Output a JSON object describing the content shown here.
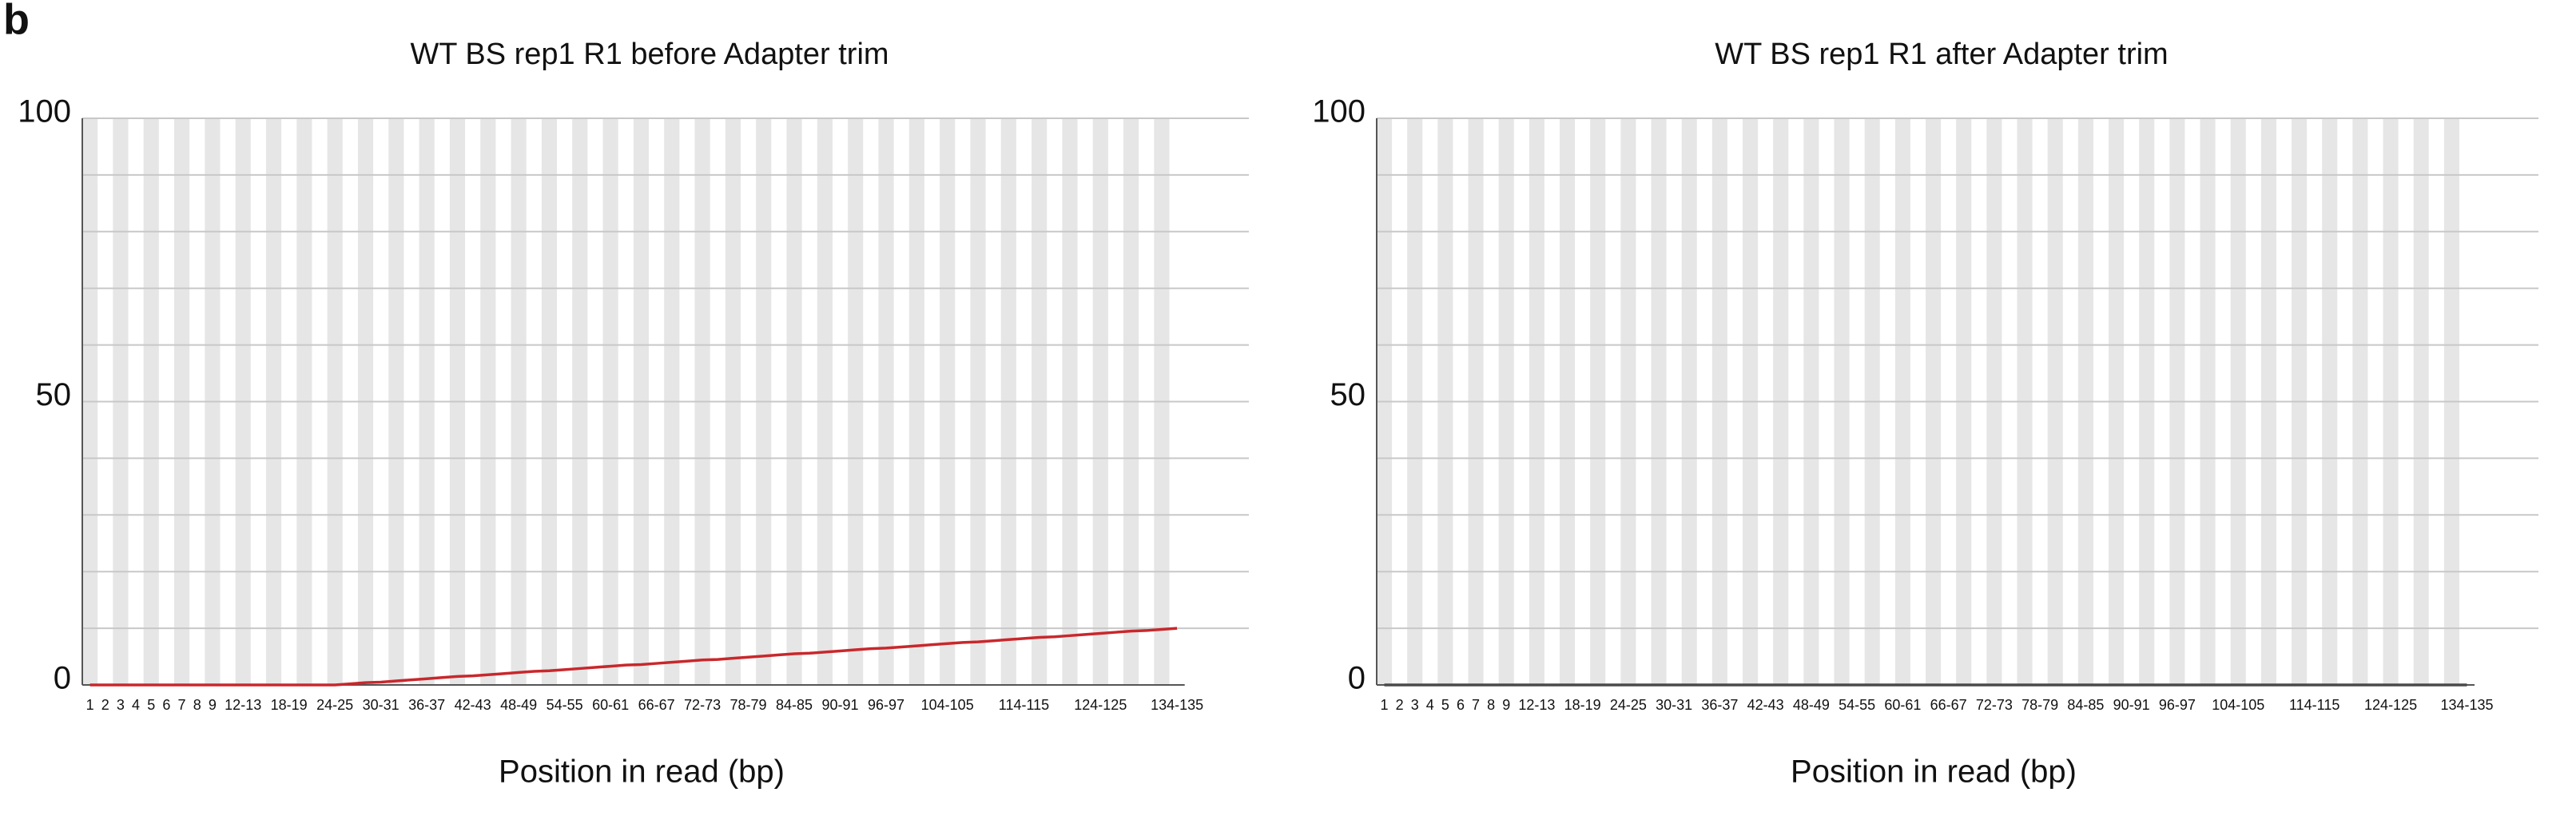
{
  "panel_label": "b",
  "chart_data": [
    {
      "type": "line",
      "title": "WT BS rep1 R1 before Adapter trim",
      "xlabel": "Position in read (bp)",
      "categories": [
        "1",
        "2",
        "3",
        "4",
        "5",
        "6",
        "7",
        "8",
        "9",
        null,
        "12-13",
        null,
        null,
        "18-19",
        null,
        null,
        "24-25",
        null,
        null,
        "30-31",
        null,
        null,
        "36-37",
        null,
        null,
        "42-43",
        null,
        null,
        "48-49",
        null,
        null,
        "54-55",
        null,
        null,
        "60-61",
        null,
        null,
        "66-67",
        null,
        null,
        "72-73",
        null,
        null,
        "78-79",
        null,
        null,
        "84-85",
        null,
        null,
        "90-91",
        null,
        null,
        "96-97",
        null,
        null,
        null,
        "104-105",
        null,
        null,
        null,
        null,
        "114-115",
        null,
        null,
        null,
        null,
        "124-125",
        null,
        null,
        null,
        null,
        "134-135"
      ],
      "color": "#c8282c",
      "values": [
        0,
        0,
        0,
        0,
        0,
        0,
        0,
        0,
        0,
        0,
        0,
        0,
        0,
        0,
        0,
        0,
        0,
        0.2,
        0.4,
        0.5,
        0.7,
        0.9,
        1.1,
        1.3,
        1.5,
        1.6,
        1.8,
        2.0,
        2.2,
        2.4,
        2.5,
        2.7,
        2.9,
        3.1,
        3.3,
        3.5,
        3.6,
        3.8,
        4.0,
        4.2,
        4.4,
        4.5,
        4.7,
        4.9,
        5.1,
        5.3,
        5.5,
        5.6,
        5.8,
        6.0,
        6.2,
        6.4,
        6.5,
        6.7,
        6.9,
        7.1,
        7.3,
        7.5,
        7.6,
        7.8,
        8.0,
        8.2,
        8.4,
        8.5,
        8.7,
        8.9,
        9.1,
        9.3,
        9.5,
        9.6,
        9.8,
        10.0
      ],
      "ylim": [
        0,
        100
      ],
      "yticks": [
        0,
        50,
        100
      ],
      "grid_lines": [
        10,
        20,
        30,
        40,
        50,
        60,
        70,
        80,
        90,
        100
      ]
    },
    {
      "type": "line",
      "title": "WT BS rep1 R1 after Adapter trim",
      "xlabel": "Position in read (bp)",
      "categories": [
        "1",
        "2",
        "3",
        "4",
        "5",
        "6",
        "7",
        "8",
        "9",
        null,
        "12-13",
        null,
        null,
        "18-19",
        null,
        null,
        "24-25",
        null,
        null,
        "30-31",
        null,
        null,
        "36-37",
        null,
        null,
        "42-43",
        null,
        null,
        "48-49",
        null,
        null,
        "54-55",
        null,
        null,
        "60-61",
        null,
        null,
        "66-67",
        null,
        null,
        "72-73",
        null,
        null,
        "78-79",
        null,
        null,
        "84-85",
        null,
        null,
        "90-91",
        null,
        null,
        "96-97",
        null,
        null,
        null,
        "104-105",
        null,
        null,
        null,
        null,
        "114-115",
        null,
        null,
        null,
        null,
        "124-125",
        null,
        null,
        null,
        null,
        "134-135"
      ],
      "color": "#4a4a4a",
      "values": [
        0,
        0,
        0,
        0,
        0,
        0,
        0,
        0,
        0,
        0,
        0,
        0,
        0,
        0,
        0,
        0,
        0,
        0,
        0,
        0,
        0,
        0,
        0,
        0,
        0,
        0,
        0,
        0,
        0,
        0,
        0,
        0,
        0,
        0,
        0,
        0,
        0,
        0,
        0,
        0,
        0,
        0,
        0,
        0,
        0,
        0,
        0,
        0,
        0,
        0,
        0,
        0,
        0,
        0,
        0,
        0,
        0,
        0,
        0,
        0,
        0,
        0,
        0,
        0,
        0,
        0,
        0,
        0,
        0,
        0,
        0,
        0
      ],
      "ylim": [
        0,
        100
      ],
      "yticks": [
        0,
        50,
        100
      ],
      "grid_lines": [
        10,
        20,
        30,
        40,
        50,
        60,
        70,
        80,
        90,
        100
      ]
    }
  ]
}
